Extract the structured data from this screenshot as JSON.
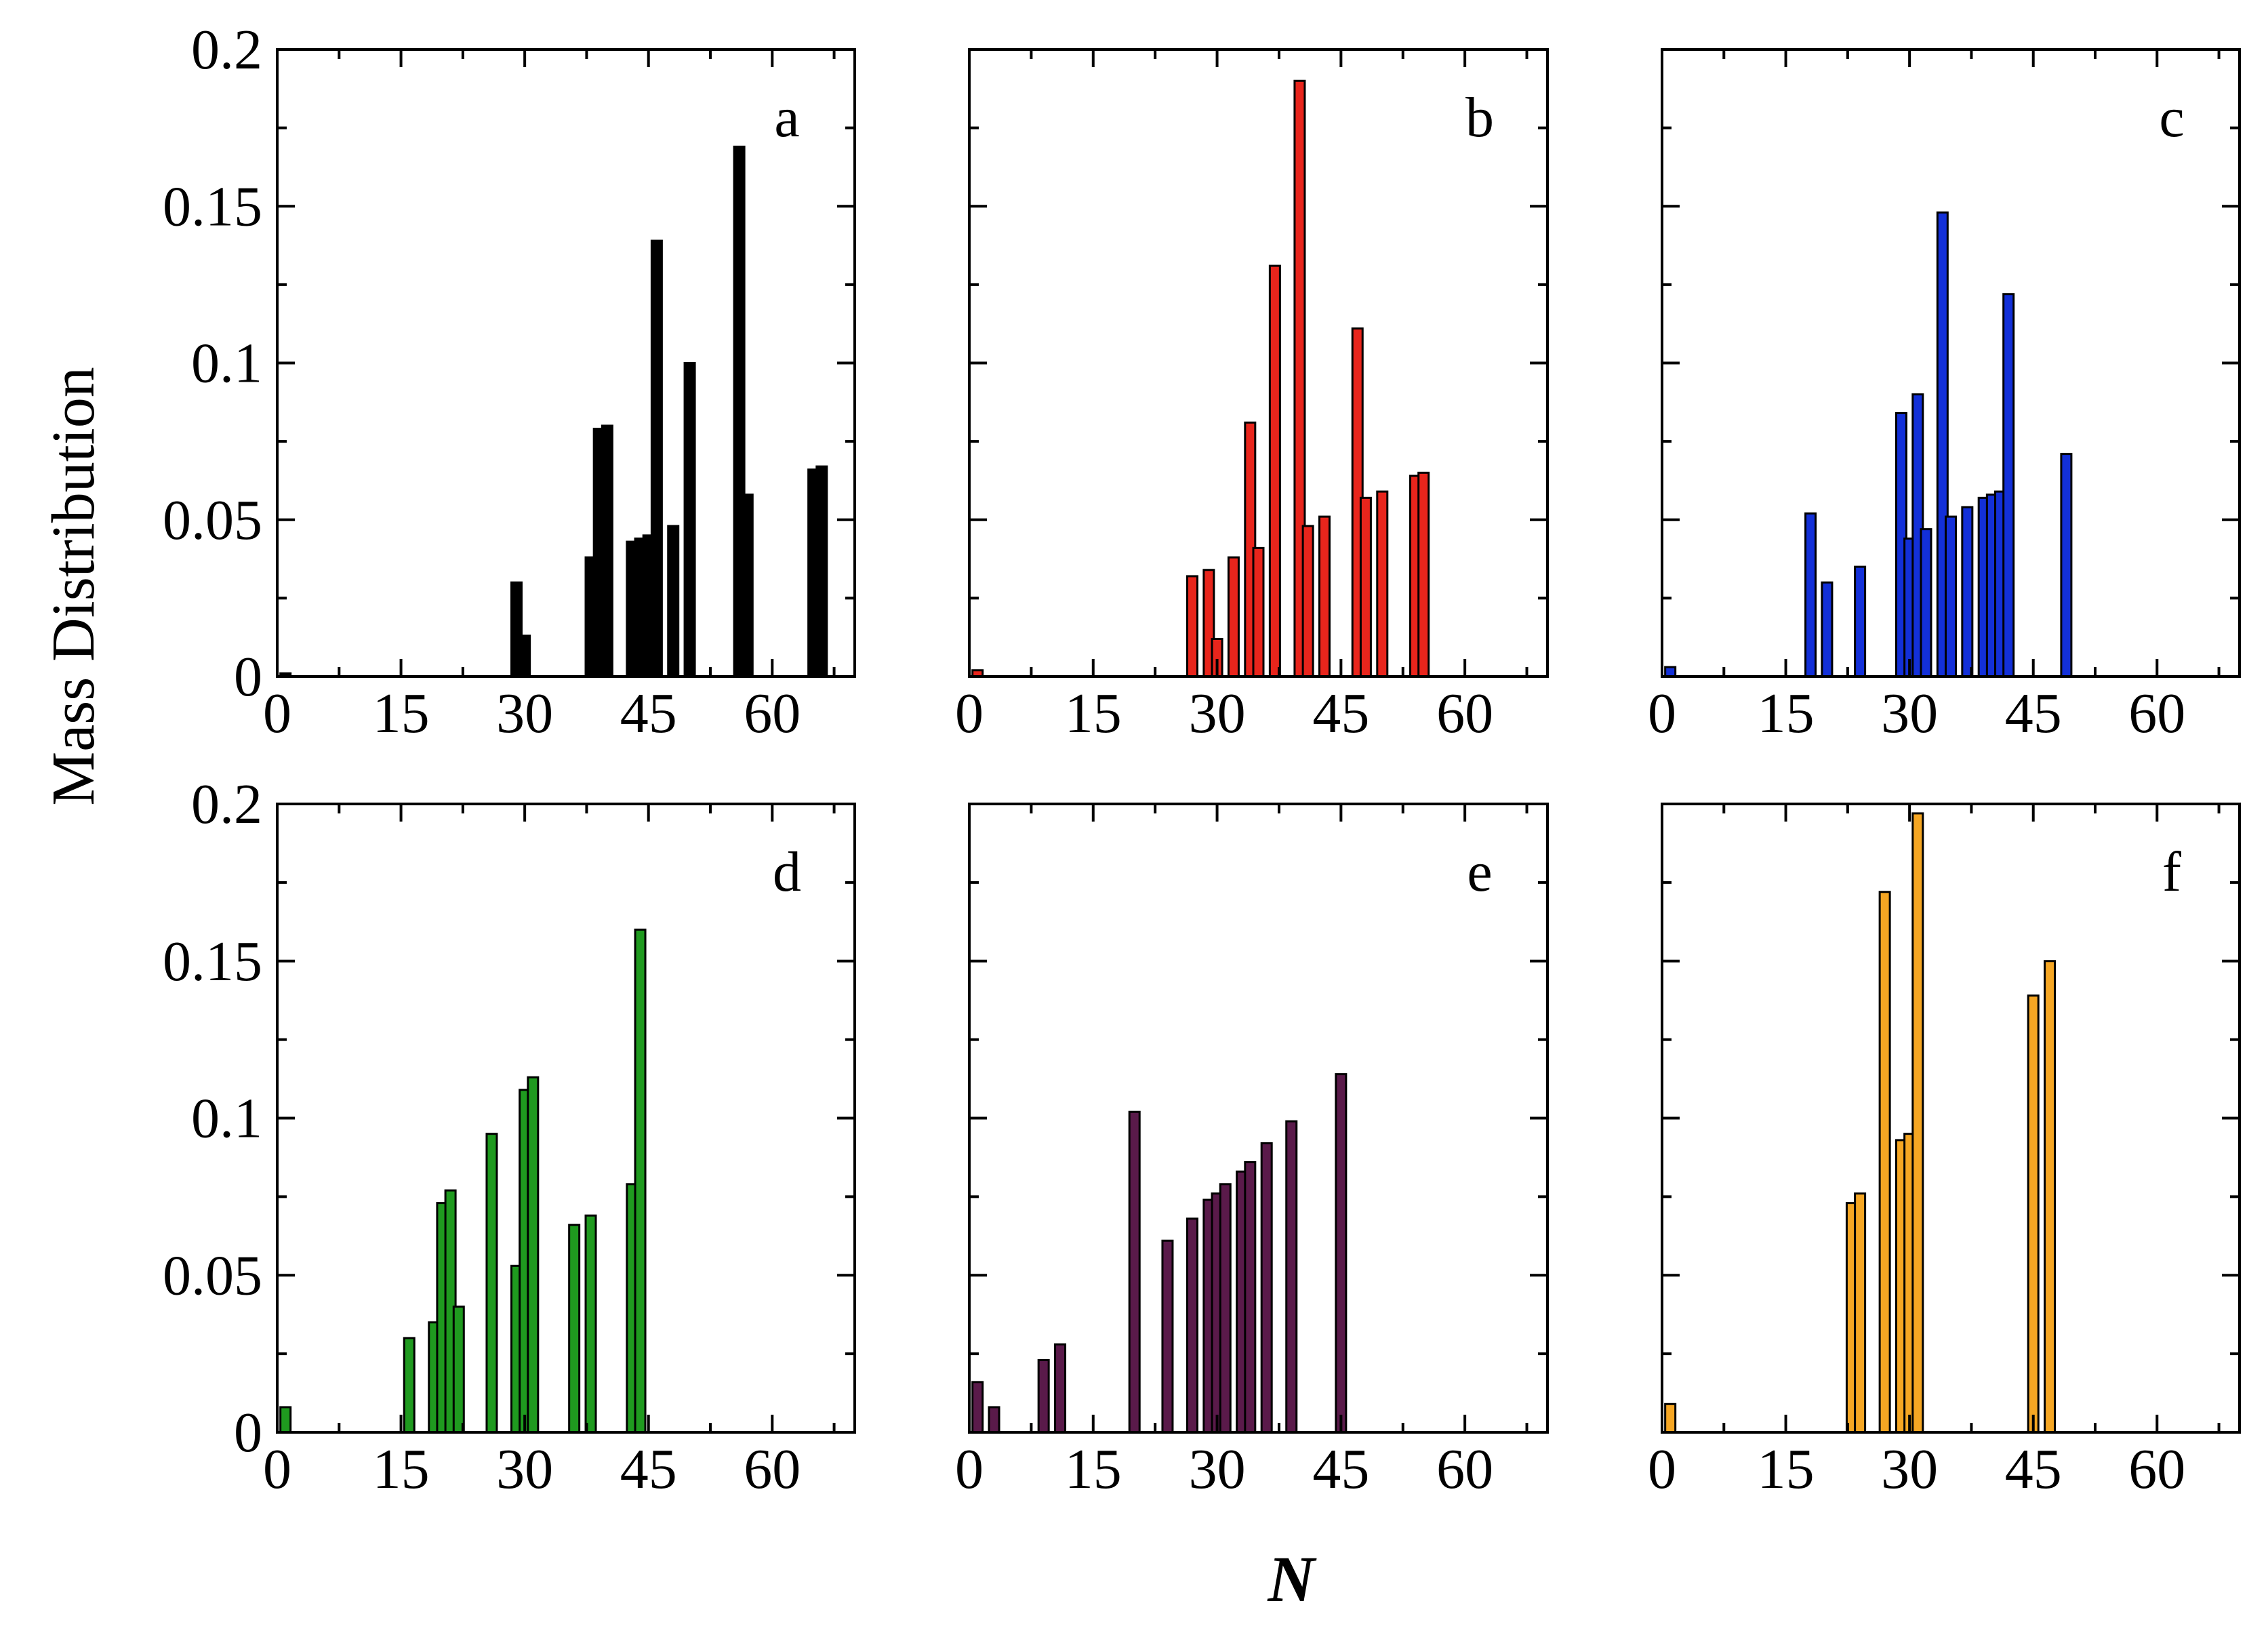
{
  "figure": {
    "ylabel": "Mass Distribution",
    "xlabel": "N"
  },
  "chart_data": [
    {
      "type": "bar",
      "panel": "a",
      "color": "#000000",
      "xlim": [
        0,
        70
      ],
      "ylim": [
        0,
        0.2
      ],
      "xticks": [
        0,
        15,
        30,
        45,
        60
      ],
      "xtick_labels": [
        "0",
        "15",
        "30",
        "45",
        "60"
      ],
      "yticks": [
        0,
        0.05,
        0.1,
        0.15,
        0.2
      ],
      "ytick_labels": [
        "0",
        "0.05",
        "0.1",
        "0.15",
        "0.2"
      ],
      "show_ytick_labels": true,
      "x": [
        1,
        29,
        30,
        38,
        39,
        40,
        43,
        44,
        45,
        46,
        48,
        50,
        56,
        57,
        65,
        66
      ],
      "values": [
        0.001,
        0.03,
        0.013,
        0.038,
        0.079,
        0.08,
        0.043,
        0.044,
        0.045,
        0.139,
        0.048,
        0.1,
        0.169,
        0.058,
        0.066,
        0.067
      ]
    },
    {
      "type": "bar",
      "panel": "b",
      "color": "#e8251c",
      "xlim": [
        0,
        70
      ],
      "ylim": [
        0,
        0.2
      ],
      "xticks": [
        0,
        15,
        30,
        45,
        60
      ],
      "xtick_labels": [
        "0",
        "15",
        "30",
        "45",
        "60"
      ],
      "yticks": [
        0,
        0.05,
        0.1,
        0.15,
        0.2
      ],
      "ytick_labels": [
        "0",
        "0.05",
        "0.1",
        "0.15",
        "0.2"
      ],
      "show_ytick_labels": false,
      "x": [
        1,
        27,
        29,
        30,
        32,
        34,
        35,
        37,
        40,
        41,
        43,
        47,
        48,
        50,
        54,
        55
      ],
      "values": [
        0.002,
        0.032,
        0.034,
        0.012,
        0.038,
        0.081,
        0.041,
        0.131,
        0.19,
        0.048,
        0.051,
        0.111,
        0.057,
        0.059,
        0.064,
        0.065
      ]
    },
    {
      "type": "bar",
      "panel": "c",
      "color": "#1330d8",
      "xlim": [
        0,
        70
      ],
      "ylim": [
        0,
        0.2
      ],
      "xticks": [
        0,
        15,
        30,
        45,
        60
      ],
      "xtick_labels": [
        "0",
        "15",
        "30",
        "45",
        "60"
      ],
      "yticks": [
        0,
        0.05,
        0.1,
        0.15,
        0.2
      ],
      "ytick_labels": [
        "0",
        "0.05",
        "0.1",
        "0.15",
        "0.2"
      ],
      "show_ytick_labels": false,
      "x": [
        1,
        18,
        20,
        24,
        29,
        30,
        31,
        32,
        34,
        35,
        37,
        39,
        40,
        41,
        42,
        49
      ],
      "values": [
        0.003,
        0.052,
        0.03,
        0.035,
        0.084,
        0.044,
        0.09,
        0.047,
        0.148,
        0.051,
        0.054,
        0.057,
        0.058,
        0.059,
        0.122,
        0.071
      ]
    },
    {
      "type": "bar",
      "panel": "d",
      "color": "#1f9a1f",
      "xlim": [
        0,
        70
      ],
      "ylim": [
        0,
        0.2
      ],
      "xticks": [
        0,
        15,
        30,
        45,
        60
      ],
      "xtick_labels": [
        "0",
        "15",
        "30",
        "45",
        "60"
      ],
      "yticks": [
        0,
        0.05,
        0.1,
        0.15,
        0.2
      ],
      "ytick_labels": [
        "0",
        "0.05",
        "0.1",
        "0.15",
        "0.2"
      ],
      "show_ytick_labels": true,
      "x": [
        1,
        16,
        19,
        20,
        21,
        22,
        26,
        29,
        30,
        31,
        36,
        38,
        43,
        44
      ],
      "values": [
        0.008,
        0.03,
        0.035,
        0.073,
        0.077,
        0.04,
        0.095,
        0.053,
        0.109,
        0.113,
        0.066,
        0.069,
        0.079,
        0.16
      ]
    },
    {
      "type": "bar",
      "panel": "e",
      "color": "#5a1a4a",
      "xlim": [
        0,
        70
      ],
      "ylim": [
        0,
        0.2
      ],
      "xticks": [
        0,
        15,
        30,
        45,
        60
      ],
      "xtick_labels": [
        "0",
        "15",
        "30",
        "45",
        "60"
      ],
      "yticks": [
        0,
        0.05,
        0.1,
        0.15,
        0.2
      ],
      "ytick_labels": [
        "0",
        "0.05",
        "0.1",
        "0.15",
        "0.2"
      ],
      "show_ytick_labels": false,
      "x": [
        1,
        3,
        9,
        11,
        20,
        24,
        27,
        29,
        30,
        31,
        33,
        34,
        36,
        39,
        45
      ],
      "values": [
        0.016,
        0.008,
        0.023,
        0.028,
        0.102,
        0.061,
        0.068,
        0.074,
        0.076,
        0.079,
        0.083,
        0.086,
        0.092,
        0.099,
        0.114
      ]
    },
    {
      "type": "bar",
      "panel": "f",
      "color": "#f5a623",
      "xlim": [
        0,
        70
      ],
      "ylim": [
        0,
        0.2
      ],
      "xticks": [
        0,
        15,
        30,
        45,
        60
      ],
      "xtick_labels": [
        "0",
        "15",
        "30",
        "45",
        "60"
      ],
      "yticks": [
        0,
        0.05,
        0.1,
        0.15,
        0.2
      ],
      "ytick_labels": [
        "0",
        "0.05",
        "0.1",
        "0.15",
        "0.2"
      ],
      "show_ytick_labels": false,
      "x": [
        1,
        23,
        24,
        27,
        29,
        30,
        31,
        45,
        47
      ],
      "values": [
        0.009,
        0.073,
        0.076,
        0.172,
        0.093,
        0.095,
        0.197,
        0.139,
        0.15
      ]
    }
  ]
}
